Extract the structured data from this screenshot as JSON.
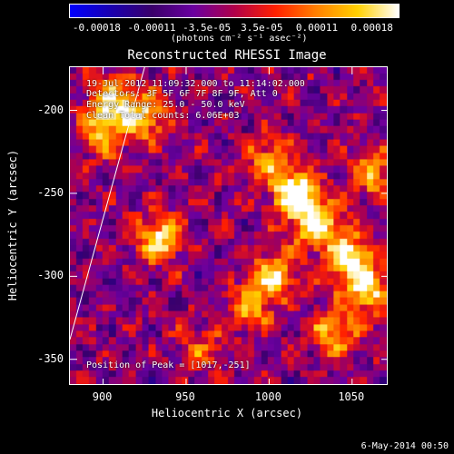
{
  "colorbar": {
    "ticks": [
      "-0.00018",
      "-0.00011",
      "-3.5e-05",
      "3.5e-05",
      "0.00011",
      "0.00018"
    ],
    "units": "(photons cm⁻² s⁻¹ asec⁻²)",
    "colormap": [
      "#0000ff",
      "#1a00b0",
      "#3a006a",
      "#6a00a0",
      "#b0004a",
      "#ff2000",
      "#ff8000",
      "#ffd000",
      "#ffffff"
    ]
  },
  "title": "Reconstructed RHESSI Image",
  "info": {
    "time": "19-Jul-2012 11:09:32.000 to 11:14:02.000",
    "detectors": "Detectors: 3F 5F 6F 7F 8F 9F, Att 0",
    "energy": "Energy Range: 25.0 - 50.0 keV",
    "clean": "Clean    Total counts: 6.06E+03",
    "peak": "Position of Peak = [1017,-251]"
  },
  "chart_data": {
    "type": "heatmap",
    "title": "Reconstructed RHESSI Image",
    "xlabel": "Heliocentric X (arcsec)",
    "ylabel": "Heliocentric Y (arcsec)",
    "xlim": [
      880,
      1072
    ],
    "ylim": [
      -366,
      -174
    ],
    "xticks": [
      "900",
      "950",
      "1000",
      "1050"
    ],
    "xtick_values": [
      900,
      950,
      1000,
      1050
    ],
    "yticks": [
      "-200",
      "-250",
      "-300",
      "-350"
    ],
    "ytick_values": [
      -200,
      -250,
      -300,
      -350
    ],
    "color_range": [
      -0.00018,
      0.00018
    ],
    "peak_position": [
      1017,
      -251
    ],
    "limb_line": [
      [
        880,
        -338
      ],
      [
        925,
        -174
      ]
    ],
    "source_regions": [
      {
        "x": 905,
        "y": -195,
        "intensity": 0.7
      },
      {
        "x": 925,
        "y": -205,
        "intensity": 0.65
      },
      {
        "x": 900,
        "y": -215,
        "intensity": 0.5
      },
      {
        "x": 935,
        "y": -278,
        "intensity": 0.75
      },
      {
        "x": 1017,
        "y": -251,
        "intensity": 1.0
      },
      {
        "x": 1030,
        "y": -270,
        "intensity": 0.8
      },
      {
        "x": 1050,
        "y": -290,
        "intensity": 0.85
      },
      {
        "x": 1060,
        "y": -310,
        "intensity": 0.7
      },
      {
        "x": 1005,
        "y": -300,
        "intensity": 0.65
      },
      {
        "x": 990,
        "y": -320,
        "intensity": 0.55
      },
      {
        "x": 1040,
        "y": -335,
        "intensity": 0.6
      },
      {
        "x": 1065,
        "y": -240,
        "intensity": 0.55
      },
      {
        "x": 960,
        "y": -345,
        "intensity": 0.35
      },
      {
        "x": 1000,
        "y": -230,
        "intensity": 0.45
      }
    ]
  },
  "footer": "6-May-2014 00:50"
}
